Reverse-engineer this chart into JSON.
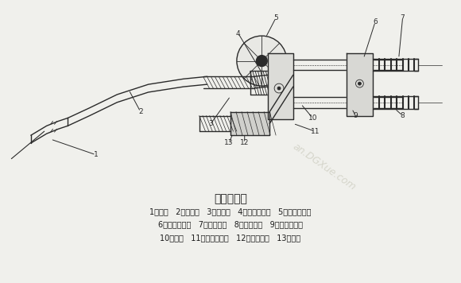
{
  "title": "焊炬的构造",
  "title_fontsize": 10,
  "bg_color": "#f0f0ec",
  "text_color": "#1a1a1a",
  "line1": "1－焊嘴   2－混合管   3－射吸管   4－射吸管螺母   5－乙炔调节阀",
  "line2": "6－乙炔进气管   7－乙炔接头   8－氧气接头   9－氧气进气管",
  "line3": "10－手柄   11－氧气调节阀   12－氧气阀针   13－喷嘴",
  "watermark": "an.DGXue.com",
  "fig_width": 5.8,
  "fig_height": 3.56,
  "dpi": 100
}
